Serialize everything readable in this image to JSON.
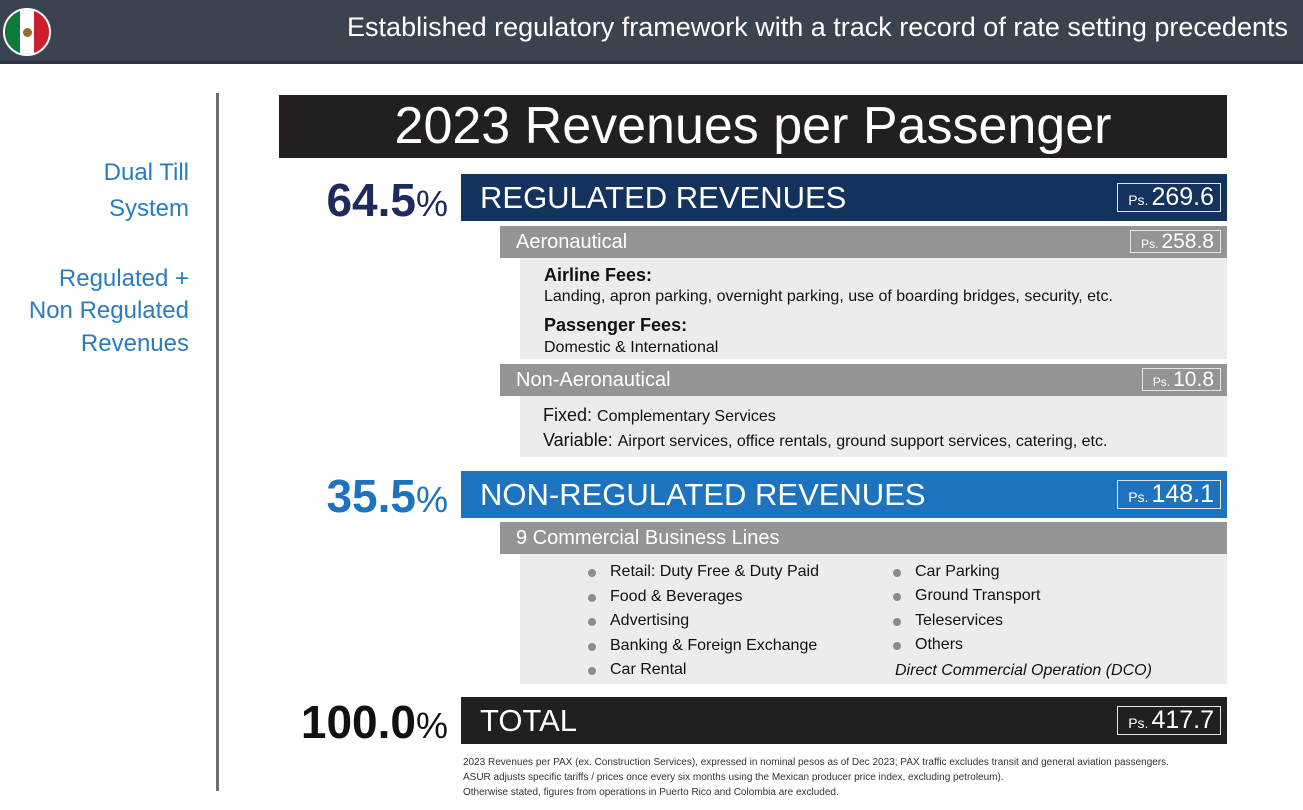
{
  "header": {
    "title": "Established regulatory framework with a track record of rate setting precedents",
    "flag_icon": "mexico-flag-icon"
  },
  "sidebar": {
    "line1": "Dual Till",
    "line2": "System",
    "line3": "Regulated +",
    "line4": "Non Regulated",
    "line5": "Revenues"
  },
  "main_title": "2023 Revenues per Passenger",
  "regulated": {
    "pct": "64.5",
    "pct_sign": "%",
    "label": "REGULATED REVENUES",
    "currency": "Ps.",
    "amount": "269.6",
    "color": "#14325e",
    "aeronautical": {
      "label": "Aeronautical",
      "currency": "Ps.",
      "amount": "258.8",
      "airline_fees_title": "Airline Fees:",
      "airline_fees_text": "Landing, apron parking, overnight parking, use of boarding bridges, security, etc.",
      "passenger_fees_title": "Passenger Fees:",
      "passenger_fees_text": "Domestic & International"
    },
    "non_aeronautical": {
      "label": "Non-Aeronautical",
      "currency": "Ps.",
      "amount": "10.8",
      "fixed_label": "Fixed:",
      "fixed_text": "Complementary Services",
      "variable_label": "Variable:",
      "variable_text": "Airport services, office rentals, ground support services, catering, etc."
    }
  },
  "non_regulated": {
    "pct": "35.5",
    "pct_sign": "%",
    "label": "NON-REGULATED REVENUES",
    "currency": "Ps.",
    "amount": "148.1",
    "color": "#1e73be",
    "commercial_label": "9 Commercial Business Lines",
    "lines_left": [
      "Retail: Duty Free & Duty Paid",
      "Food & Beverages",
      "Advertising",
      "Banking & Foreign Exchange",
      "Car Rental"
    ],
    "lines_right": [
      "Car Parking",
      "Ground Transport",
      "Teleservices",
      "Others"
    ],
    "dco": "Direct Commercial Operation (DCO)"
  },
  "total": {
    "pct": "100.0",
    "pct_sign": "%",
    "label": "TOTAL",
    "currency": "Ps.",
    "amount": "417.7"
  },
  "notes": [
    "2023 Revenues per PAX (ex. Construction Services), expressed in nominal pesos as of Dec 2023; PAX traffic excludes transit and general aviation passengers.",
    "ASUR adjusts specific tariffs / prices once every six months using the Mexican producer price index, excluding petroleum).",
    "Otherwise stated, figures from operations in Puerto Rico and Colombia are excluded."
  ]
}
